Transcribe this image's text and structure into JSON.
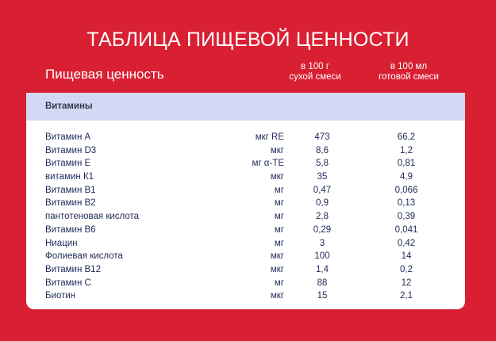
{
  "title": "ТАБЛИЦА ПИЩЕВОЙ ЦЕННОСТИ",
  "subtitle": "Пищевая ценность",
  "columns": [
    {
      "line1": "в 100 г",
      "line2": "сухой смеси"
    },
    {
      "line1": "в 100 мл",
      "line2": "готовой смеси"
    }
  ],
  "section": "Витамины",
  "rows": [
    {
      "name": "Витамин A",
      "unit": "мкг RE",
      "dry": "473",
      "ready": "66,2"
    },
    {
      "name": "Витамин D3",
      "unit": "мкг",
      "dry": "8,6",
      "ready": "1,2"
    },
    {
      "name": "Витамин E",
      "unit": "мг α-TE",
      "dry": "5,8",
      "ready": "0,81"
    },
    {
      "name": "витамин К1",
      "unit": "мкг",
      "dry": "35",
      "ready": "4,9"
    },
    {
      "name": "Витамин B1",
      "unit": "мг",
      "dry": "0,47",
      "ready": "0,066"
    },
    {
      "name": "Витамин B2",
      "unit": "мг",
      "dry": "0,9",
      "ready": "0,13"
    },
    {
      "name": "пантотеновая кислота",
      "unit": "мг",
      "dry": "2,8",
      "ready": "0,39"
    },
    {
      "name": "Витамин B6",
      "unit": "мг",
      "dry": "0,29",
      "ready": "0,041"
    },
    {
      "name": "Ниацин",
      "unit": "мг",
      "dry": "3",
      "ready": "0,42"
    },
    {
      "name": "Фолиевая кислота",
      "unit": "мкг",
      "dry": "100",
      "ready": "14"
    },
    {
      "name": "Витамин B12",
      "unit": "мкг",
      "dry": "1,4",
      "ready": "0,2"
    },
    {
      "name": "Витамин C",
      "unit": "мг",
      "dry": "88",
      "ready": "12"
    },
    {
      "name": "Биотин",
      "unit": "мкг",
      "dry": "15",
      "ready": "2,1"
    }
  ],
  "colors": {
    "background": "#d92033",
    "band": "#d4d8f5",
    "text": "#1e2a5a"
  }
}
